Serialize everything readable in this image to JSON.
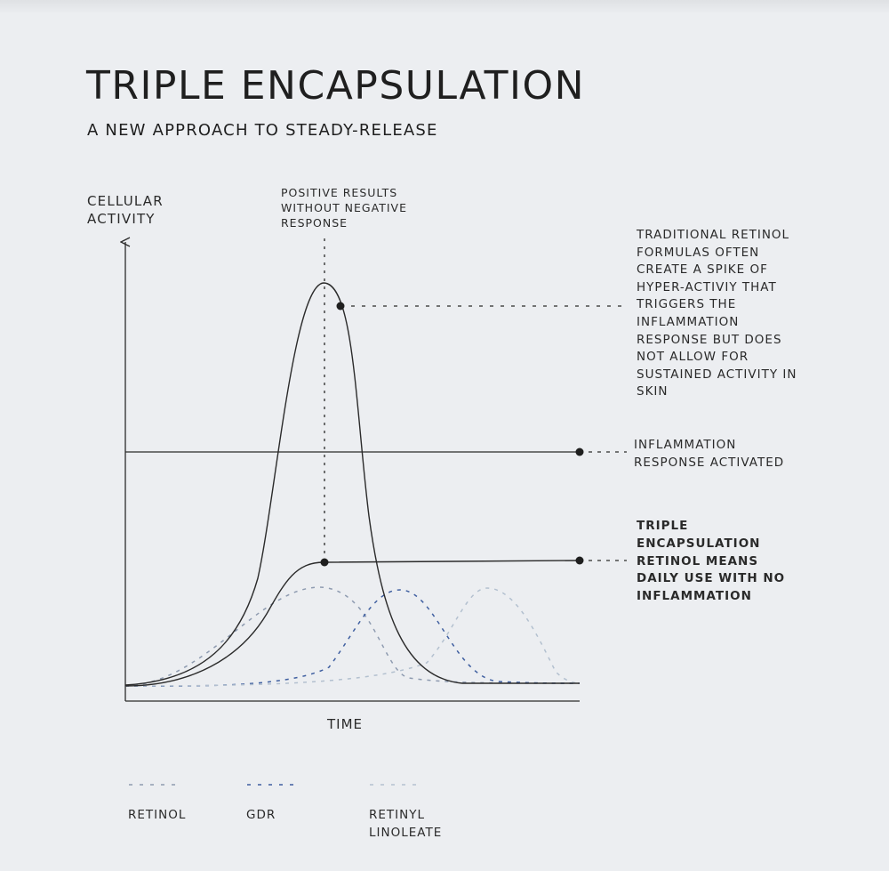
{
  "title": "TRIPLE ENCAPSULATION",
  "subtitle": "A NEW APPROACH TO STEADY-RELEASE",
  "axes": {
    "y_label": [
      "CELLULAR",
      "ACTIVITY"
    ],
    "x_label": "TIME"
  },
  "annotations": {
    "peak": [
      "POSITIVE RESULTS",
      "WITHOUT NEGATIVE",
      "RESPONSE"
    ],
    "traditional": [
      "TRADITIONAL RETINOL",
      "FORMULAS OFTEN",
      "CREATE A SPIKE OF",
      "HYPER-ACTIVIY THAT",
      "TRIGGERS THE",
      "INFLAMMATION",
      "RESPONSE BUT DOES",
      "NOT ALLOW FOR",
      "SUSTAINED ACTIVITY IN",
      "SKIN"
    ],
    "inflammation": [
      "INFLAMMATION",
      "RESPONSE ACTIVATED"
    ],
    "triple": [
      "TRIPLE",
      "ENCAPSULATION",
      "RETINOL MEANS",
      "DAILY USE WITH NO",
      "INFLAMMATION"
    ]
  },
  "legend": [
    {
      "name": [
        "RETINOL"
      ],
      "color": "#8e9bb0"
    },
    {
      "name": [
        "GDR"
      ],
      "color": "#3f5fa0"
    },
    {
      "name": [
        "RETINYL",
        "LINOLEATE"
      ],
      "color": "#b3c0cf"
    }
  ],
  "colors": {
    "line": "#2b2b2b",
    "background": "#eceef1"
  }
}
